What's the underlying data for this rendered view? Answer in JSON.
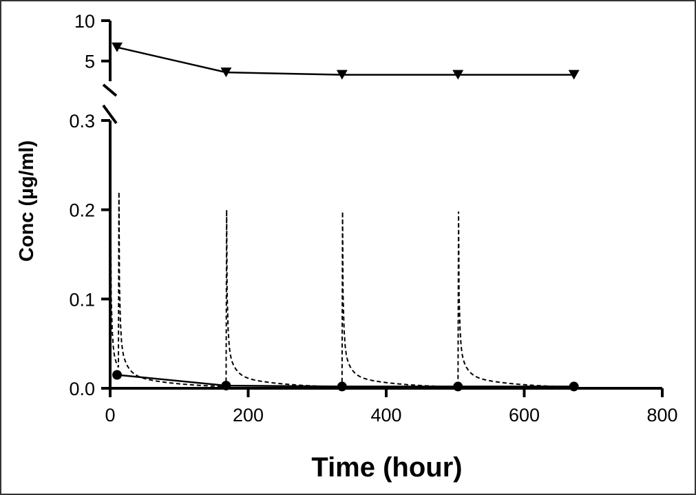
{
  "chart_data": {
    "type": "line",
    "xlabel": "Time (hour)",
    "ylabel": "Conc (µg/ml)",
    "xlim": [
      0,
      800
    ],
    "x_ticks": [
      0,
      200,
      400,
      600,
      800
    ],
    "x_tick_labels": [
      "0",
      "200",
      "400",
      "600",
      "800"
    ],
    "upper_panel": {
      "ylim": [
        2.5,
        10
      ],
      "y_ticks": [
        5,
        10
      ],
      "y_tick_labels": [
        "5",
        "10"
      ]
    },
    "lower_panel": {
      "ylim": [
        0,
        0.3
      ],
      "y_ticks": [
        0,
        0.1,
        0.2,
        0.3
      ],
      "y_tick_labels": [
        "0.0",
        "0.1",
        "0.2",
        "0.3"
      ]
    },
    "series": [
      {
        "marker": "triangle-down",
        "line_style": "solid",
        "panel": "upper",
        "x": [
          10,
          168,
          336,
          504,
          672
        ],
        "y": [
          6.7,
          3.6,
          3.3,
          3.3,
          3.3
        ]
      },
      {
        "marker": "circle",
        "line_style": "solid",
        "panel": "lower",
        "x": [
          10,
          168,
          336,
          504,
          672
        ],
        "y": [
          0.015,
          0.003,
          0.002,
          0.002,
          0.002
        ]
      },
      {
        "marker": "none",
        "line_style": "dashed",
        "panel": "lower",
        "dose_times": [
          0,
          12,
          168,
          336,
          504
        ],
        "peaks": [
          0.195,
          0.22,
          0.2,
          0.198,
          0.198
        ]
      }
    ]
  }
}
